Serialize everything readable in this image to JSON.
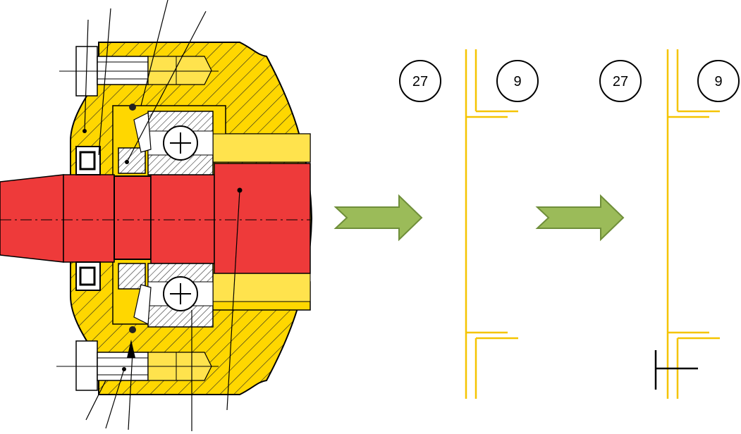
{
  "colors": {
    "housing": "#FFD700",
    "shaft": "#EE3A3A",
    "arrow_fill": "#9BBB59",
    "arrow_stroke": "#6F8E3A",
    "schematic_line": "#F5C400",
    "ink": "#000000"
  },
  "icons": {
    "flow_arrow": "right-chevron-arrow",
    "circle_label": "circle"
  },
  "panels": {
    "middle": {
      "label_left": "27",
      "label_right": "9"
    },
    "right": {
      "label_left": "27",
      "label_right": "9"
    }
  }
}
